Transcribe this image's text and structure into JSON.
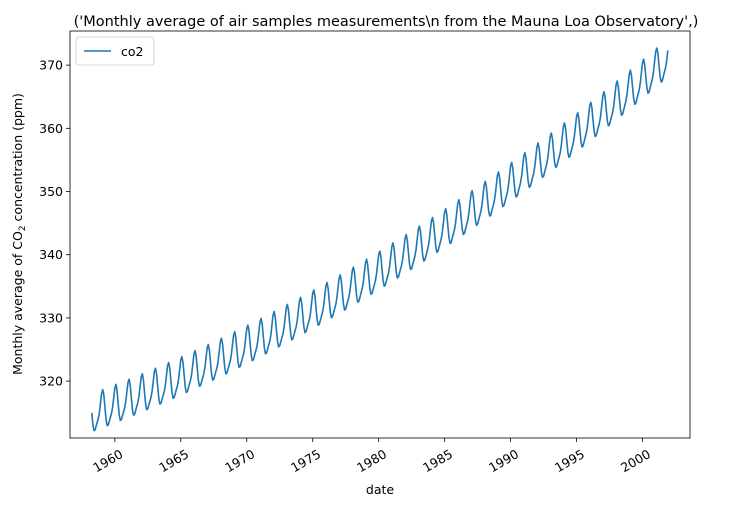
{
  "chart_data": {
    "type": "line",
    "title": "('Monthly average of air samples measurements\\n from the Mauna Loa Observatory',)",
    "xlabel": "date",
    "ylabel_prefix": "Monthly average of CO",
    "ylabel_sub": "2",
    "ylabel_suffix": " concentration (ppm)",
    "xlim": [
      1956.6,
      2003.6
    ],
    "ylim": [
      311.0,
      375.4
    ],
    "xticks": [
      {
        "value": 1960,
        "label": "1960"
      },
      {
        "value": 1965,
        "label": "1965"
      },
      {
        "value": 1970,
        "label": "1970"
      },
      {
        "value": 1975,
        "label": "1975"
      },
      {
        "value": 1980,
        "label": "1980"
      },
      {
        "value": 1985,
        "label": "1985"
      },
      {
        "value": 1990,
        "label": "1990"
      },
      {
        "value": 1995,
        "label": "1995"
      },
      {
        "value": 2000,
        "label": "2000"
      }
    ],
    "yticks": [
      {
        "value": 320,
        "label": "320"
      },
      {
        "value": 330,
        "label": "330"
      },
      {
        "value": 340,
        "label": "340"
      },
      {
        "value": 350,
        "label": "350"
      },
      {
        "value": 360,
        "label": "360"
      },
      {
        "value": 370,
        "label": "370"
      }
    ],
    "legend": {
      "position": "top-left",
      "entries": [
        "co2"
      ]
    },
    "series": [
      {
        "name": "co2",
        "color": "#1f77b4",
        "x_start": 1958.25,
        "x_end": 2001.917,
        "step": 0.0833333,
        "model": {
          "base": 314.6,
          "linear": 0.78,
          "quadratic": 0.0116,
          "seasonal_amplitude_1": 2.8,
          "seasonal_phase_1": 0.09,
          "seasonal_amplitude_2": 0.75,
          "seasonal_phase_2": 0.05
        }
      }
    ]
  }
}
